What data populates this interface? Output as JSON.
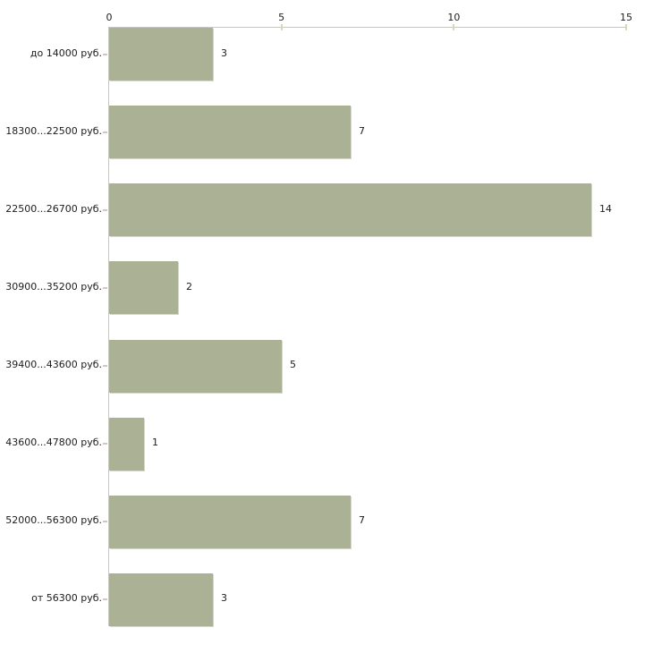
{
  "chart_data": {
    "type": "bar",
    "orientation": "horizontal",
    "title": "",
    "xlabel": "",
    "ylabel": "",
    "categories": [
      "до 14000 руб.",
      "18300...22500 руб.",
      "22500...26700 руб.",
      "30900...35200 руб.",
      "39400...43600 руб.",
      "43600...47800 руб.",
      "52000...56300 руб.",
      "от 56300 руб."
    ],
    "values": [
      3,
      7,
      14,
      2,
      5,
      1,
      7,
      3
    ],
    "value_labels": [
      "3",
      "7",
      "14",
      "2",
      "5",
      "1",
      "7",
      "3"
    ],
    "x_axis_position": "top",
    "x_tick_labels": [
      "0",
      "5",
      "10",
      "15"
    ],
    "x_tick_values": [
      0,
      5,
      10,
      15
    ],
    "x_tick_marks": [
      5,
      10,
      15
    ],
    "xlim": [
      0,
      15
    ],
    "grid": false,
    "legend": null,
    "colors": {
      "bar": "#abb194",
      "bar_shadow": "#d4d7cd",
      "axis_line": "#c6c6c6",
      "value_tick": "#d8d8b0",
      "category_tick": "#dcc3bb",
      "text": "#1c1c1c",
      "background": "#ffffff"
    }
  }
}
